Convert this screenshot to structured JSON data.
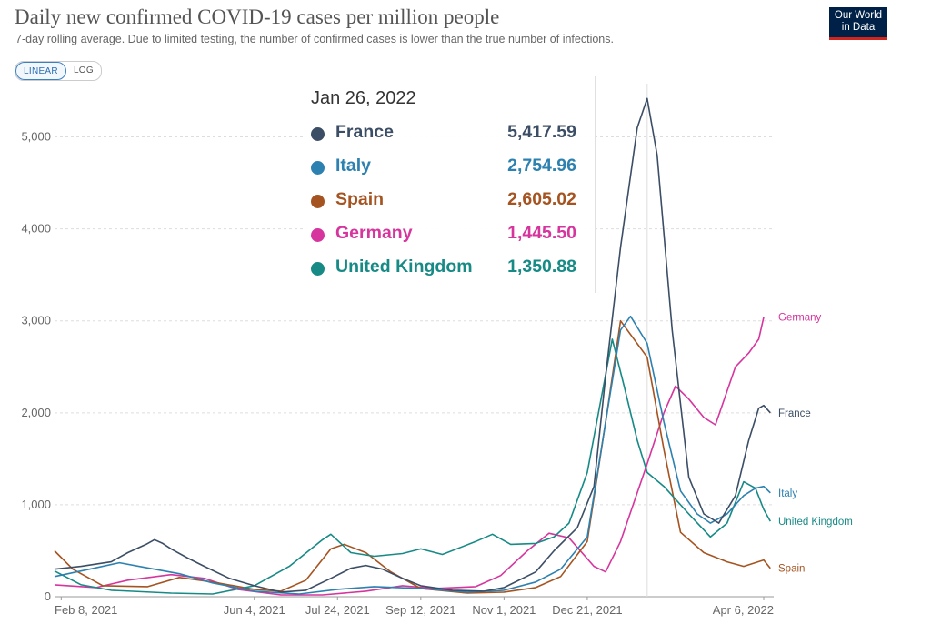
{
  "header": {
    "title": "Daily new confirmed COVID-19 cases per million people",
    "subtitle": "7-day rolling average. Due to limited testing, the number of confirmed cases is lower than the true number of infections.",
    "logo_line1": "Our World",
    "logo_line2": "in Data"
  },
  "controls": {
    "linear_label": "LINEAR",
    "log_label": "LOG",
    "selected": "LINEAR"
  },
  "tooltip": {
    "date": "Jan 26, 2022",
    "rows": [
      {
        "name": "France",
        "value": "5,417.59",
        "color": "#3c4e66"
      },
      {
        "name": "Italy",
        "value": "2,754.96",
        "color": "#2d81b0"
      },
      {
        "name": "Spain",
        "value": "2,605.02",
        "color": "#a55421"
      },
      {
        "name": "Germany",
        "value": "1,445.50",
        "color": "#d6359e"
      },
      {
        "name": "United Kingdom",
        "value": "1,350.88",
        "color": "#178a86"
      }
    ]
  },
  "chart_data": {
    "type": "line",
    "title": "Daily new confirmed COVID-19 cases per million people",
    "subtitle": "7-day rolling average. Due to limited testing, the number of confirmed cases is lower than the true number of infections.",
    "x_ticks": [
      "Feb 8, 2021",
      "Jun 4, 2021",
      "Jul 24, 2021",
      "Sep 12, 2021",
      "Nov 1, 2021",
      "Dec 21, 2021",
      "Apr 6, 2022"
    ],
    "y_ticks": [
      "0",
      "1,000",
      "2,000",
      "3,000",
      "4,000",
      "5,000"
    ],
    "ylim": [
      0,
      5500
    ],
    "xlim": [
      "2021-02-04",
      "2022-04-12"
    ],
    "grid": "horizontal",
    "legend": "inline labels at right end of lines",
    "series": [
      {
        "name": "France",
        "color": "#3c4e66",
        "points": [
          [
            "2021-02-04",
            300
          ],
          [
            "2021-02-20",
            330
          ],
          [
            "2021-03-10",
            380
          ],
          [
            "2021-03-20",
            480
          ],
          [
            "2021-03-31",
            570
          ],
          [
            "2021-04-05",
            620
          ],
          [
            "2021-04-10",
            580
          ],
          [
            "2021-04-15",
            520
          ],
          [
            "2021-04-25",
            420
          ],
          [
            "2021-05-05",
            330
          ],
          [
            "2021-05-20",
            200
          ],
          [
            "2021-06-04",
            120
          ],
          [
            "2021-06-20",
            50
          ],
          [
            "2021-07-05",
            70
          ],
          [
            "2021-07-20",
            200
          ],
          [
            "2021-08-01",
            310
          ],
          [
            "2021-08-10",
            340
          ],
          [
            "2021-08-20",
            300
          ],
          [
            "2021-09-01",
            200
          ],
          [
            "2021-09-12",
            120
          ],
          [
            "2021-10-01",
            70
          ],
          [
            "2021-10-20",
            60
          ],
          [
            "2021-11-01",
            100
          ],
          [
            "2021-11-20",
            270
          ],
          [
            "2021-12-01",
            500
          ],
          [
            "2021-12-15",
            750
          ],
          [
            "2021-12-25",
            1200
          ],
          [
            "2022-01-01",
            2400
          ],
          [
            "2022-01-10",
            3800
          ],
          [
            "2022-01-20",
            5100
          ],
          [
            "2022-01-26",
            5417.59
          ],
          [
            "2022-02-01",
            4800
          ],
          [
            "2022-02-10",
            2900
          ],
          [
            "2022-02-20",
            1300
          ],
          [
            "2022-03-01",
            900
          ],
          [
            "2022-03-10",
            800
          ],
          [
            "2022-03-20",
            1100
          ],
          [
            "2022-03-28",
            1700
          ],
          [
            "2022-04-03",
            2050
          ],
          [
            "2022-04-06",
            2080
          ],
          [
            "2022-04-10",
            2000
          ]
        ]
      },
      {
        "name": "Italy",
        "color": "#2d81b0",
        "points": [
          [
            "2021-02-04",
            220
          ],
          [
            "2021-02-25",
            300
          ],
          [
            "2021-03-15",
            370
          ],
          [
            "2021-03-30",
            320
          ],
          [
            "2021-04-20",
            250
          ],
          [
            "2021-05-10",
            150
          ],
          [
            "2021-06-04",
            60
          ],
          [
            "2021-07-01",
            30
          ],
          [
            "2021-07-24",
            80
          ],
          [
            "2021-08-15",
            110
          ],
          [
            "2021-09-12",
            90
          ],
          [
            "2021-10-10",
            50
          ],
          [
            "2021-11-01",
            70
          ],
          [
            "2021-11-20",
            160
          ],
          [
            "2021-12-05",
            300
          ],
          [
            "2021-12-21",
            650
          ],
          [
            "2022-01-01",
            1900
          ],
          [
            "2022-01-10",
            2900
          ],
          [
            "2022-01-16",
            3050
          ],
          [
            "2022-01-26",
            2754.96
          ],
          [
            "2022-02-05",
            1900
          ],
          [
            "2022-02-15",
            1150
          ],
          [
            "2022-02-25",
            900
          ],
          [
            "2022-03-05",
            800
          ],
          [
            "2022-03-15",
            900
          ],
          [
            "2022-03-25",
            1100
          ],
          [
            "2022-04-01",
            1180
          ],
          [
            "2022-04-06",
            1200
          ],
          [
            "2022-04-10",
            1130
          ]
        ]
      },
      {
        "name": "Spain",
        "color": "#a55421",
        "points": [
          [
            "2021-02-04",
            500
          ],
          [
            "2021-02-15",
            300
          ],
          [
            "2021-03-05",
            120
          ],
          [
            "2021-04-01",
            110
          ],
          [
            "2021-04-20",
            210
          ],
          [
            "2021-05-10",
            160
          ],
          [
            "2021-06-04",
            80
          ],
          [
            "2021-06-20",
            60
          ],
          [
            "2021-07-05",
            180
          ],
          [
            "2021-07-20",
            520
          ],
          [
            "2021-07-28",
            570
          ],
          [
            "2021-08-10",
            480
          ],
          [
            "2021-08-25",
            270
          ],
          [
            "2021-09-12",
            90
          ],
          [
            "2021-10-10",
            40
          ],
          [
            "2021-11-01",
            50
          ],
          [
            "2021-11-20",
            100
          ],
          [
            "2021-12-05",
            220
          ],
          [
            "2021-12-21",
            600
          ],
          [
            "2022-01-01",
            1900
          ],
          [
            "2022-01-10",
            3000
          ],
          [
            "2022-01-26",
            2605.02
          ],
          [
            "2022-02-05",
            1600
          ],
          [
            "2022-02-15",
            700
          ],
          [
            "2022-03-01",
            480
          ],
          [
            "2022-03-15",
            380
          ],
          [
            "2022-03-25",
            330
          ],
          [
            "2022-04-06",
            400
          ],
          [
            "2022-04-10",
            310
          ]
        ]
      },
      {
        "name": "Germany",
        "color": "#d6359e",
        "points": [
          [
            "2021-02-04",
            130
          ],
          [
            "2021-03-01",
            100
          ],
          [
            "2021-03-20",
            180
          ],
          [
            "2021-04-15",
            240
          ],
          [
            "2021-05-05",
            200
          ],
          [
            "2021-05-25",
            80
          ],
          [
            "2021-06-20",
            20
          ],
          [
            "2021-07-15",
            20
          ],
          [
            "2021-08-10",
            60
          ],
          [
            "2021-09-01",
            120
          ],
          [
            "2021-09-20",
            90
          ],
          [
            "2021-10-15",
            110
          ],
          [
            "2021-10-30",
            230
          ],
          [
            "2021-11-15",
            500
          ],
          [
            "2021-11-28",
            690
          ],
          [
            "2021-12-10",
            640
          ],
          [
            "2021-12-25",
            330
          ],
          [
            "2022-01-01",
            270
          ],
          [
            "2022-01-10",
            600
          ],
          [
            "2022-01-26",
            1445.5
          ],
          [
            "2022-02-05",
            2000
          ],
          [
            "2022-02-12",
            2290
          ],
          [
            "2022-02-20",
            2150
          ],
          [
            "2022-03-01",
            1950
          ],
          [
            "2022-03-08",
            1870
          ],
          [
            "2022-03-20",
            2500
          ],
          [
            "2022-03-28",
            2650
          ],
          [
            "2022-04-03",
            2800
          ],
          [
            "2022-04-06",
            3040
          ]
        ]
      },
      {
        "name": "United Kingdom",
        "color": "#178a86",
        "points": [
          [
            "2021-02-04",
            280
          ],
          [
            "2021-02-20",
            130
          ],
          [
            "2021-03-10",
            70
          ],
          [
            "2021-04-15",
            40
          ],
          [
            "2021-05-10",
            30
          ],
          [
            "2021-06-04",
            120
          ],
          [
            "2021-06-25",
            330
          ],
          [
            "2021-07-15",
            620
          ],
          [
            "2021-07-20",
            680
          ],
          [
            "2021-08-01",
            480
          ],
          [
            "2021-08-15",
            440
          ],
          [
            "2021-09-01",
            470
          ],
          [
            "2021-09-12",
            520
          ],
          [
            "2021-09-25",
            460
          ],
          [
            "2021-10-15",
            600
          ],
          [
            "2021-10-25",
            680
          ],
          [
            "2021-11-05",
            570
          ],
          [
            "2021-11-20",
            580
          ],
          [
            "2021-12-01",
            650
          ],
          [
            "2021-12-10",
            800
          ],
          [
            "2021-12-21",
            1350
          ],
          [
            "2022-01-05",
            2800
          ],
          [
            "2022-01-12",
            2300
          ],
          [
            "2022-01-20",
            1700
          ],
          [
            "2022-01-26",
            1350.88
          ],
          [
            "2022-02-05",
            1200
          ],
          [
            "2022-02-20",
            900
          ],
          [
            "2022-03-05",
            650
          ],
          [
            "2022-03-15",
            800
          ],
          [
            "2022-03-25",
            1250
          ],
          [
            "2022-04-01",
            1180
          ],
          [
            "2022-04-06",
            950
          ],
          [
            "2022-04-10",
            820
          ]
        ]
      }
    ],
    "end_labels": [
      {
        "series": "Germany",
        "text": "Germany"
      },
      {
        "series": "France",
        "text": "France"
      },
      {
        "series": "Italy",
        "text": "Italy"
      },
      {
        "series": "United Kingdom",
        "text": "United Kingdom"
      },
      {
        "series": "Spain",
        "text": "Spain"
      }
    ]
  }
}
